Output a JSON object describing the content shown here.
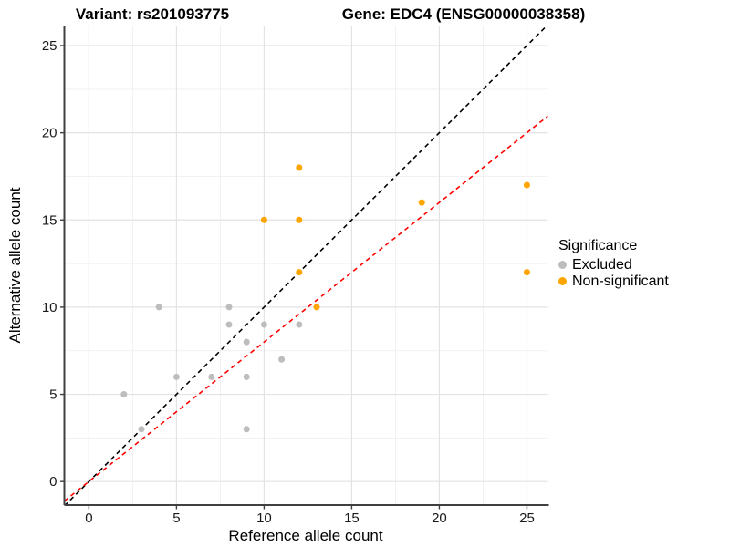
{
  "titles": {
    "variant": "Variant: rs201093775",
    "gene": "Gene: EDC4 (ENSG00000038358)"
  },
  "chart_data": {
    "type": "scatter",
    "title": "Variant: rs201093775 / Gene: EDC4 (ENSG00000038358)",
    "xlabel": "Reference allele count",
    "ylabel": "Alternative allele count",
    "xlim": [
      -1.4,
      26.2
    ],
    "ylim": [
      -1.35,
      26.15
    ],
    "xticks": [
      0,
      5,
      10,
      15,
      20,
      25
    ],
    "yticks": [
      0,
      5,
      10,
      15,
      20,
      25
    ],
    "minor_xticks": [
      2.5,
      7.5,
      12.5,
      17.5,
      22.5
    ],
    "minor_yticks": [
      2.5,
      7.5,
      12.5,
      17.5,
      22.5
    ],
    "grid": "on",
    "legend": {
      "title": "Significance",
      "position": "right",
      "entries": [
        {
          "label": "Excluded",
          "color": "#BDBDBD"
        },
        {
          "label": "Non-significant",
          "color": "#FFA500"
        }
      ]
    },
    "series": [
      {
        "name": "Excluded",
        "color": "#BDBDBD",
        "points": [
          [
            2,
            5
          ],
          [
            3,
            3
          ],
          [
            4,
            10
          ],
          [
            5,
            6
          ],
          [
            7,
            6
          ],
          [
            8,
            9
          ],
          [
            8,
            10
          ],
          [
            9,
            3
          ],
          [
            9,
            6
          ],
          [
            9,
            8
          ],
          [
            10,
            9
          ],
          [
            11,
            7
          ],
          [
            12,
            9
          ]
        ]
      },
      {
        "name": "Non-significant",
        "color": "#FFA500",
        "points": [
          [
            10,
            15
          ],
          [
            12,
            12
          ],
          [
            12,
            15
          ],
          [
            12,
            18
          ],
          [
            13,
            10
          ],
          [
            19,
            16
          ],
          [
            25,
            12
          ],
          [
            25,
            17
          ]
        ]
      }
    ],
    "lines": [
      {
        "name": "identity-line",
        "color": "#000000",
        "slope": 1.0,
        "intercept": 0,
        "style": "dashed"
      },
      {
        "name": "fitted-ratio-line",
        "color": "#FF0000",
        "slope": 0.8,
        "intercept": 0,
        "style": "dashed"
      }
    ],
    "style": {
      "major_grid_color": "#e3e3e3",
      "minor_grid_color": "#f1f1f1",
      "axis_line_color": "#404040",
      "tick_label_color": "#1a1a1a",
      "point_radius": 3.5
    }
  }
}
